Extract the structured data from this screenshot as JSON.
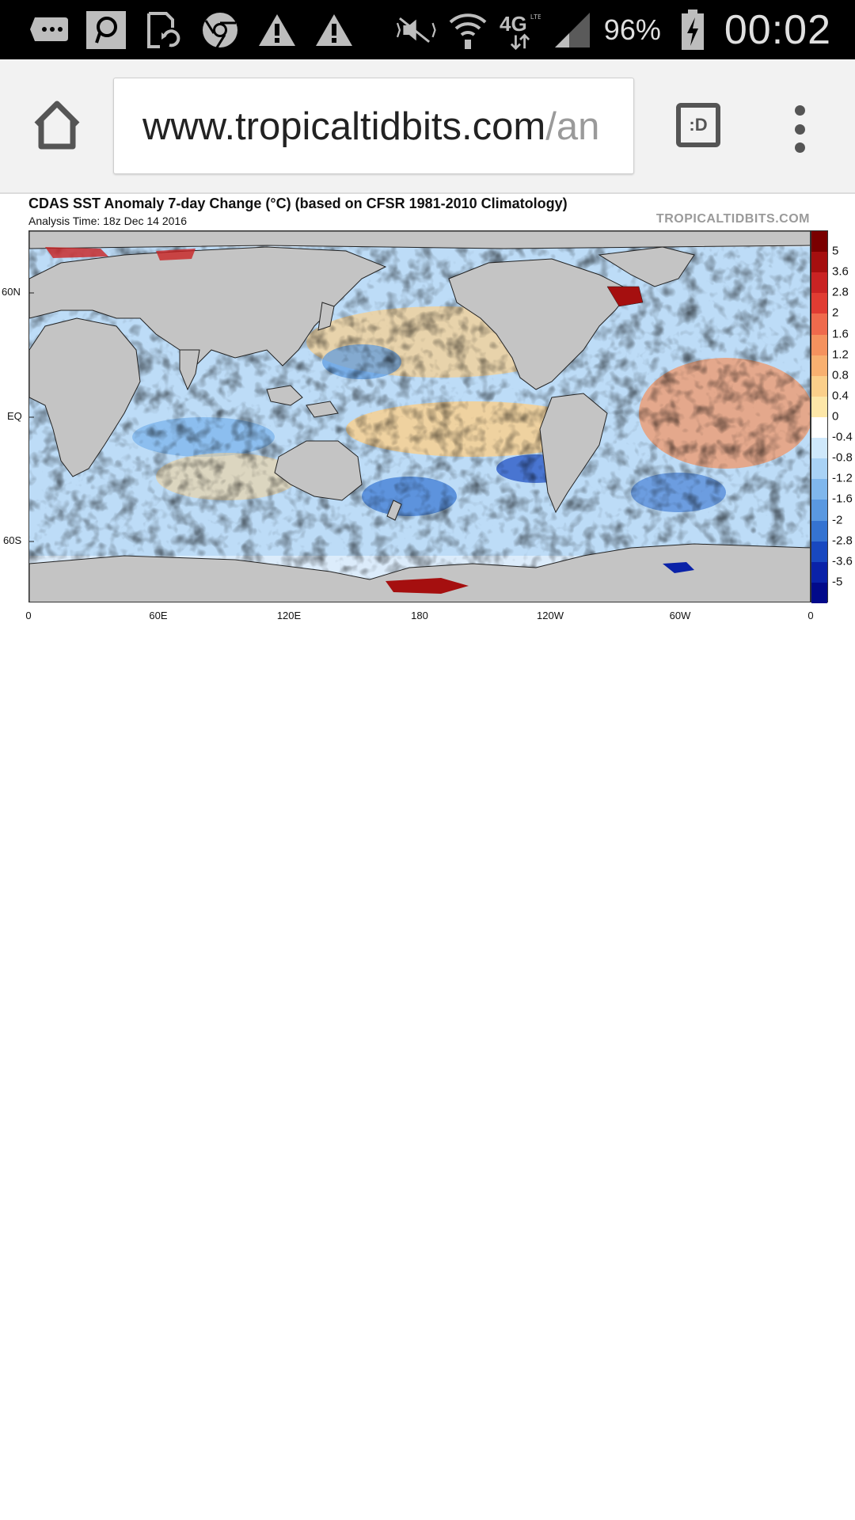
{
  "status_bar": {
    "icons_left": [
      "message-more-icon",
      "hangouts-icon",
      "sync-icon",
      "chrome-icon",
      "warning-icon",
      "warning-icon"
    ],
    "icons_right": [
      "mute-icon",
      "wifi-icon",
      "network-4g-lte-icon",
      "signal-icon",
      "battery-charging-icon"
    ],
    "battery_percent": "96%",
    "time": "00:02"
  },
  "browser": {
    "url_domain": "www.tropicaltidbits.com",
    "url_path": "/an",
    "extension_label": ":D"
  },
  "figure": {
    "title": "CDAS SST Anomaly 7-day Change (°C) (based on CFSR 1981-2010 Climatology)",
    "subtitle": "Analysis Time: 18z Dec 14 2016",
    "brand": "TROPICALTIDBITS.COM",
    "lat_labels": [
      "60N",
      "EQ",
      "60S"
    ],
    "lon_labels": [
      "0",
      "60E",
      "120E",
      "180",
      "120W",
      "60W",
      "0"
    ],
    "colorbar": {
      "labels": [
        "5",
        "3.6",
        "2.8",
        "2",
        "1.6",
        "1.2",
        "0.8",
        "0.4",
        "0",
        "-0.4",
        "-0.8",
        "-1.2",
        "-1.6",
        "-2",
        "-2.8",
        "-3.6",
        "-5"
      ],
      "colors": [
        "#7a0000",
        "#a50f0f",
        "#c92323",
        "#e03c32",
        "#ef6a4c",
        "#f5925e",
        "#f8b070",
        "#fbcf8a",
        "#fde7a8",
        "#ffffff",
        "#cfe8fb",
        "#a9d2f5",
        "#80b7ec",
        "#5a98e0",
        "#3573d1",
        "#1848c0",
        "#0a22a8",
        "#020a8a"
      ]
    }
  }
}
